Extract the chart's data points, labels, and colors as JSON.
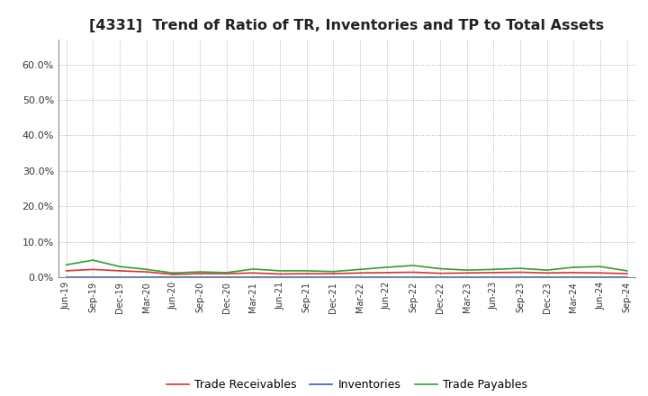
{
  "title": "[4331]  Trend of Ratio of TR, Inventories and TP to Total Assets",
  "title_fontsize": 11.5,
  "x_labels": [
    "Jun-19",
    "Sep-19",
    "Dec-19",
    "Mar-20",
    "Jun-20",
    "Sep-20",
    "Dec-20",
    "Mar-21",
    "Jun-21",
    "Sep-21",
    "Dec-21",
    "Mar-22",
    "Jun-22",
    "Sep-22",
    "Dec-22",
    "Mar-23",
    "Jun-23",
    "Sep-23",
    "Dec-23",
    "Mar-24",
    "Jun-24",
    "Sep-24"
  ],
  "trade_receivables": [
    0.018,
    0.022,
    0.018,
    0.015,
    0.008,
    0.01,
    0.01,
    0.012,
    0.009,
    0.01,
    0.01,
    0.012,
    0.013,
    0.014,
    0.011,
    0.012,
    0.013,
    0.014,
    0.012,
    0.013,
    0.012,
    0.01
  ],
  "inventories": [
    0.001,
    0.001,
    0.001,
    0.001,
    0.001,
    0.001,
    0.001,
    0.001,
    0.001,
    0.001,
    0.001,
    0.001,
    0.001,
    0.001,
    0.001,
    0.001,
    0.001,
    0.001,
    0.001,
    0.001,
    0.001,
    0.001
  ],
  "trade_payables": [
    0.035,
    0.048,
    0.03,
    0.022,
    0.012,
    0.015,
    0.013,
    0.023,
    0.018,
    0.018,
    0.016,
    0.022,
    0.028,
    0.033,
    0.024,
    0.02,
    0.022,
    0.025,
    0.02,
    0.028,
    0.03,
    0.018
  ],
  "ylim": [
    0.0,
    0.67
  ],
  "yticks": [
    0.0,
    0.1,
    0.2,
    0.3,
    0.4,
    0.5,
    0.6
  ],
  "ytick_labels": [
    "0.0%",
    "10.0%",
    "20.0%",
    "30.0%",
    "40.0%",
    "50.0%",
    "60.0%"
  ],
  "tr_color": "#e03030",
  "inv_color": "#3060d0",
  "tp_color": "#30a030",
  "bg_color": "#ffffff",
  "plot_bg_color": "#ffffff",
  "grid_color": "#b0b0b0",
  "legend_labels": [
    "Trade Receivables",
    "Inventories",
    "Trade Payables"
  ]
}
